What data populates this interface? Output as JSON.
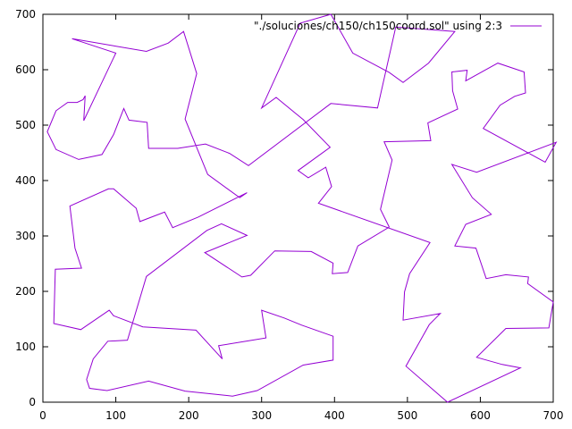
{
  "chart_data": {
    "type": "line",
    "title": "",
    "xlabel": "",
    "ylabel": "",
    "xlim": [
      0,
      700
    ],
    "ylim": [
      0,
      700
    ],
    "x_ticks": [
      "0",
      "100",
      "200",
      "300",
      "400",
      "500",
      "600",
      "700"
    ],
    "y_ticks": [
      "0",
      "100",
      "200",
      "300",
      "400",
      "500",
      "600",
      "700"
    ],
    "grid": false,
    "legend_position": "top-right",
    "series": [
      {
        "name": "\"./soluciones/ch150/ch150coord.sol\" using 2:3",
        "color": "#9400d3",
        "points": [
          [
            40,
            656
          ],
          [
            142,
            633
          ],
          [
            172,
            648
          ],
          [
            193,
            669
          ],
          [
            211,
            593
          ],
          [
            195,
            511
          ],
          [
            226,
            411
          ],
          [
            270,
            369
          ],
          [
            280,
            378
          ],
          [
            213,
            334
          ],
          [
            178,
            315
          ],
          [
            167,
            343
          ],
          [
            133,
            326
          ],
          [
            128,
            350
          ],
          [
            97,
            385
          ],
          [
            90,
            385
          ],
          [
            37,
            354
          ],
          [
            44,
            278
          ],
          [
            53,
            242
          ],
          [
            17,
            240
          ],
          [
            15,
            142
          ],
          [
            52,
            131
          ],
          [
            91,
            166
          ],
          [
            97,
            156
          ],
          [
            137,
            136
          ],
          [
            210,
            130
          ],
          [
            246,
            78
          ],
          [
            241,
            102
          ],
          [
            306,
            116
          ],
          [
            300,
            166
          ],
          [
            331,
            152
          ],
          [
            355,
            139
          ],
          [
            398,
            119
          ],
          [
            398,
            76
          ],
          [
            357,
            67
          ],
          [
            294,
            21
          ],
          [
            260,
            11
          ],
          [
            195,
            20
          ],
          [
            145,
            38
          ],
          [
            88,
            21
          ],
          [
            64,
            25
          ],
          [
            60,
            41
          ],
          [
            69,
            78
          ],
          [
            89,
            110
          ],
          [
            116,
            112
          ],
          [
            142,
            227
          ],
          [
            225,
            310
          ],
          [
            245,
            322
          ],
          [
            280,
            301
          ],
          [
            222,
            270
          ],
          [
            273,
            226
          ],
          [
            285,
            229
          ],
          [
            318,
            273
          ],
          [
            368,
            272
          ],
          [
            398,
            251
          ],
          [
            397,
            232
          ],
          [
            418,
            234
          ],
          [
            432,
            282
          ],
          [
            475,
            316
          ],
          [
            463,
            348
          ],
          [
            470,
            387
          ],
          [
            479,
            437
          ],
          [
            468,
            470
          ],
          [
            532,
            472
          ],
          [
            528,
            504
          ],
          [
            569,
            529
          ],
          [
            562,
            562
          ],
          [
            561,
            596
          ],
          [
            582,
            599
          ],
          [
            580,
            580
          ],
          [
            624,
            612
          ],
          [
            660,
            596
          ],
          [
            662,
            558
          ],
          [
            647,
            552
          ],
          [
            627,
            536
          ],
          [
            604,
            494
          ],
          [
            689,
            433
          ],
          [
            704,
            469
          ],
          [
            595,
            415
          ],
          [
            561,
            429
          ],
          [
            589,
            369
          ],
          [
            615,
            339
          ],
          [
            580,
            321
          ],
          [
            565,
            282
          ],
          [
            594,
            278
          ],
          [
            608,
            223
          ],
          [
            635,
            230
          ],
          [
            666,
            226
          ],
          [
            665,
            214
          ],
          [
            700,
            181
          ],
          [
            694,
            134
          ],
          [
            635,
            133
          ],
          [
            595,
            81
          ],
          [
            630,
            68
          ],
          [
            655,
            62
          ],
          [
            555,
            0
          ],
          [
            498,
            65
          ],
          [
            530,
            140
          ],
          [
            545,
            160
          ],
          [
            494,
            148
          ],
          [
            496,
            199
          ],
          [
            503,
            232
          ],
          [
            531,
            288
          ],
          [
            378,
            359
          ],
          [
            396,
            389
          ],
          [
            388,
            424
          ],
          [
            364,
            405
          ],
          [
            350,
            418
          ],
          [
            394,
            460
          ],
          [
            357,
            510
          ],
          [
            320,
            550
          ],
          [
            300,
            531
          ],
          [
            353,
            684
          ],
          [
            395,
            700
          ],
          [
            425,
            630
          ],
          [
            475,
            595
          ],
          [
            494,
            577
          ],
          [
            529,
            612
          ],
          [
            565,
            669
          ],
          [
            484,
            677
          ],
          [
            459,
            531
          ],
          [
            395,
            539
          ],
          [
            282,
            427
          ],
          [
            256,
            449
          ],
          [
            223,
            466
          ],
          [
            185,
            458
          ],
          [
            145,
            458
          ],
          [
            143,
            505
          ],
          [
            118,
            509
          ],
          [
            111,
            530
          ],
          [
            97,
            483
          ],
          [
            81,
            447
          ],
          [
            49,
            438
          ],
          [
            18,
            456
          ],
          [
            6,
            488
          ],
          [
            18,
            526
          ],
          [
            34,
            541
          ],
          [
            47,
            541
          ],
          [
            55,
            546
          ],
          [
            58,
            553
          ],
          [
            56,
            508
          ],
          [
            100,
            630
          ],
          [
            40,
            656
          ]
        ]
      }
    ]
  }
}
